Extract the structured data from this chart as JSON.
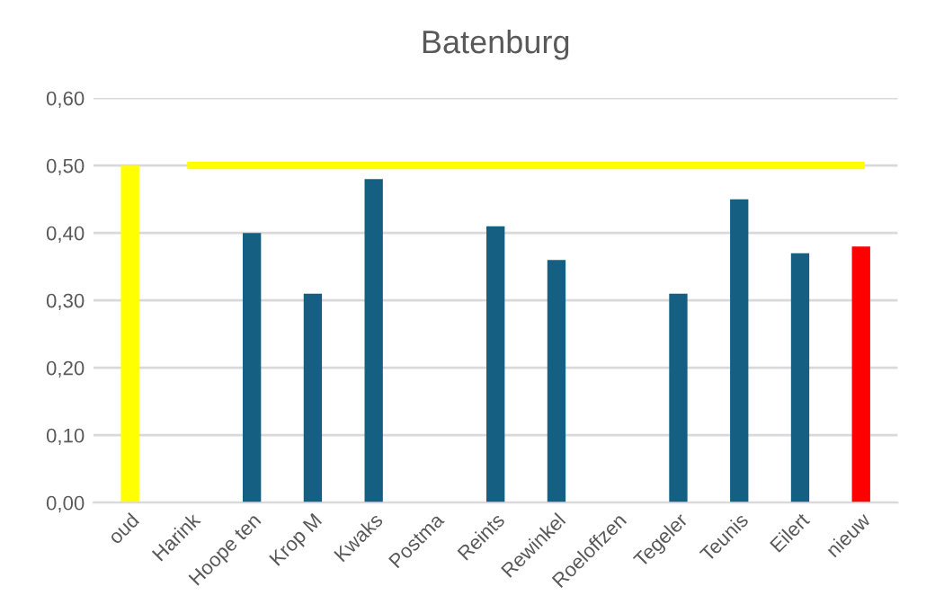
{
  "chart_data": {
    "type": "bar",
    "title": "Batenburg",
    "categories": [
      "oud",
      "Harink",
      "Hoope ten",
      "Krop M",
      "Kwaks",
      "Postma",
      "Reints",
      "Rewinkel",
      "Roeloffzen",
      "Tegeler",
      "Teunis",
      "Eilert",
      "nieuw"
    ],
    "series": [
      {
        "colors": [
          "#ffff00",
          "#156082",
          "#156082",
          "#156082",
          "#156082",
          "#156082",
          "#156082",
          "#156082",
          "#156082",
          "#156082",
          "#156082",
          "#156082",
          "#ff0000"
        ],
        "values": [
          0.5,
          null,
          0.4,
          0.31,
          0.48,
          null,
          0.41,
          0.36,
          null,
          0.31,
          0.45,
          0.37,
          0.38
        ]
      },
      {
        "type": "line",
        "color": "#ffff00",
        "values": [
          null,
          0.5,
          0.5,
          0.5,
          0.5,
          0.5,
          0.5,
          0.5,
          0.5,
          0.5,
          0.5,
          0.5,
          0.5
        ]
      }
    ],
    "ylim": [
      0,
      0.6
    ],
    "yticks": [
      {
        "value": 0,
        "label": "0,00"
      },
      {
        "value": 0.1,
        "label": "0,10"
      },
      {
        "value": 0.2,
        "label": "0,20"
      },
      {
        "value": 0.3,
        "label": "0,30"
      },
      {
        "value": 0.4,
        "label": "0,40"
      },
      {
        "value": 0.5,
        "label": "0,50"
      },
      {
        "value": 0.6,
        "label": "0,60"
      }
    ],
    "grid": "y",
    "legend": false
  }
}
